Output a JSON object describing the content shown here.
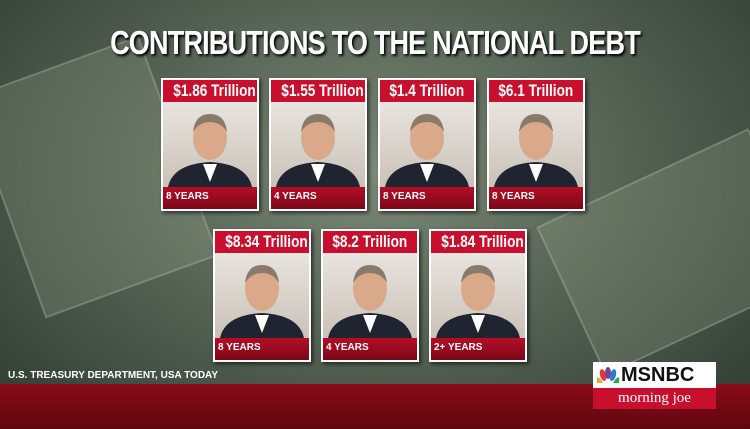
{
  "header": {
    "title": "CONTRIBUTIONS TO THE NATIONAL DEBT"
  },
  "cards": [
    {
      "amount": "$1.86 Trillion",
      "years": "8 YEARS"
    },
    {
      "amount": "$1.55 Trillion",
      "years": "4 YEARS"
    },
    {
      "amount": "$1.4 Trillion",
      "years": "8 YEARS"
    },
    {
      "amount": "$6.1 Trillion",
      "years": "8 YEARS"
    },
    {
      "amount": "$8.34 Trillion",
      "years": "8 YEARS"
    },
    {
      "amount": "$8.2 Trillion",
      "years": "4 YEARS"
    },
    {
      "amount": "$1.84 Trillion",
      "years": "2+ YEARS"
    }
  ],
  "source": "U.S. TREASURY DEPARTMENT, USA TODAY",
  "logo": {
    "network": "MSNBC",
    "show": "morning joe"
  }
}
